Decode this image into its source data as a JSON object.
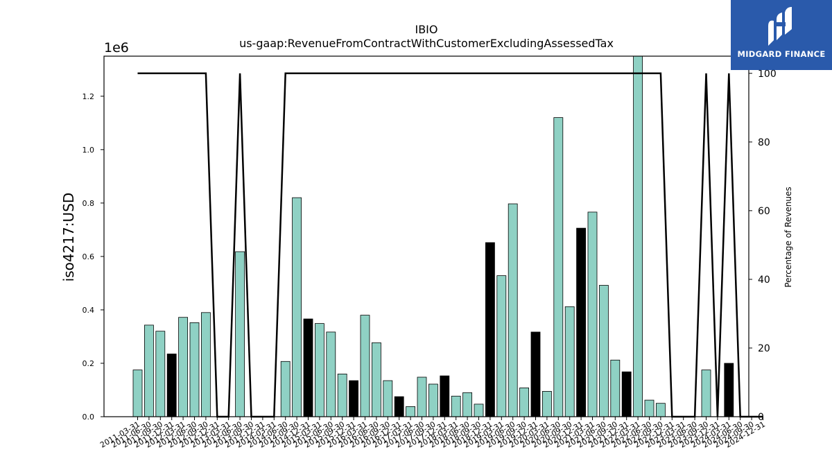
{
  "brand": {
    "name": "MIDGARD FINANCE",
    "background": "#2a5aab"
  },
  "chart_data": {
    "type": "bar",
    "title": "IBIO",
    "subtitle": "us-gaap:RevenueFromContractWithCustomerExcludingAssessedTax",
    "ylabel": "iso4217:USD",
    "y_offset_label": "1e6",
    "y2label": "Percentage of Revenues",
    "ylim": [
      0,
      1350000
    ],
    "y2lim": [
      0,
      105
    ],
    "yticks": [
      "0.0",
      "0.2",
      "0.4",
      "0.6",
      "0.8",
      "1.0",
      "1.2"
    ],
    "y2ticks": [
      "0",
      "20",
      "40",
      "60",
      "80",
      "100"
    ],
    "colors": {
      "bar": "#8fd1c4",
      "bar_highlight": "#000000",
      "line": "#000000"
    },
    "categories": [
      "2011-03-31",
      "2011-06-30",
      "2011-09-30",
      "2011-12-31",
      "2012-03-31",
      "2012-06-30",
      "2012-09-30",
      "2012-12-31",
      "2013-03-31",
      "2013-06-30",
      "2013-09-30",
      "2013-12-31",
      "2014-03-31",
      "2014-06-30",
      "2014-09-30",
      "2014-12-31",
      "2015-03-31",
      "2015-06-30",
      "2015-09-30",
      "2015-12-31",
      "2016-03-31",
      "2016-06-30",
      "2016-09-30",
      "2016-12-31",
      "2017-03-31",
      "2017-06-30",
      "2017-09-30",
      "2017-12-31",
      "2018-03-31",
      "2018-06-30",
      "2018-09-30",
      "2018-12-31",
      "2019-03-31",
      "2019-06-30",
      "2019-09-30",
      "2019-12-31",
      "2020-03-31",
      "2020-06-30",
      "2020-09-30",
      "2020-12-31",
      "2021-03-31",
      "2021-06-30",
      "2021-09-30",
      "2021-12-31",
      "2022-03-31",
      "2022-06-30",
      "2022-09-30",
      "2022-12-31",
      "2023-03-31",
      "2023-06-30",
      "2023-09-30",
      "2023-12-31",
      "2024-03-31",
      "2024-06-30",
      "2024-09-30",
      "2024-12-31"
    ],
    "tick_labels": [
      "2011-03-31",
      "2011-06-30",
      "2011-09-30",
      "2011-12-31",
      "2012-03-31",
      "2012-06-30",
      "2012-09-30",
      "2012-12-31",
      "2013-03-31",
      "2013-06-30",
      "2013-09-30",
      "2013-12-31",
      "2014-03-31",
      "2014-06-30",
      "2014-09-30",
      "2014-12-31",
      "2015-03-31",
      "2015-06-30",
      "2015-09-30",
      "2015-12-31",
      "2016-03-31",
      "2016-06-30",
      "2016-09-30",
      "2016-12-31",
      "2017-03-31",
      "2017-06-30",
      "2017-09-30",
      "2017-12-31",
      "2018-03-31",
      "2018-06-30",
      "2018-09-30",
      "2018-12-31",
      "2019-03-31",
      "2019-06-30",
      "2019-09-30",
      "2019-12-31",
      "2020-03-31",
      "2020-06-30",
      "2020-09-30",
      "2020-12-31",
      "2021-03-31",
      "2021-06-30",
      "2021-09-30",
      "2021-12-31",
      "2022-03-31",
      "2022-06-30",
      "2022-09-30",
      "2022-12-31",
      "2023-03-31",
      "2023-06-30",
      "2023-09-30",
      "2023-12-31",
      "2024-03-31",
      "2024-06-30",
      "2024-09-30",
      "2024-12-31"
    ],
    "values": [
      175000,
      343000,
      320000,
      235000,
      372000,
      352000,
      390000,
      0,
      0,
      618000,
      0,
      0,
      0,
      207000,
      820000,
      366000,
      349000,
      317000,
      160000,
      135000,
      380000,
      277000,
      135000,
      75000,
      38000,
      148000,
      122000,
      153000,
      77000,
      90000,
      47000,
      652000,
      528000,
      797000,
      108000,
      317000,
      95000,
      1120000,
      412000,
      706000,
      766000,
      492000,
      212000,
      168000,
      1350000,
      62000,
      50000,
      0,
      0,
      0,
      175000,
      0,
      200000,
      0,
      0,
      0
    ],
    "highlight": [
      false,
      false,
      false,
      true,
      false,
      false,
      false,
      false,
      false,
      false,
      false,
      false,
      false,
      false,
      false,
      true,
      false,
      false,
      false,
      true,
      false,
      false,
      false,
      true,
      false,
      false,
      false,
      true,
      false,
      false,
      false,
      true,
      false,
      false,
      false,
      true,
      false,
      false,
      false,
      true,
      false,
      false,
      false,
      true,
      false,
      false,
      false,
      false,
      false,
      false,
      false,
      false,
      true,
      false,
      false,
      false
    ],
    "line_series": {
      "name": "Percentage of Revenues",
      "values": [
        100,
        100,
        100,
        100,
        100,
        100,
        100,
        0,
        0,
        100,
        0,
        0,
        0,
        100,
        100,
        100,
        100,
        100,
        100,
        100,
        100,
        100,
        100,
        100,
        100,
        100,
        100,
        100,
        100,
        100,
        100,
        100,
        100,
        100,
        100,
        100,
        100,
        100,
        100,
        100,
        100,
        100,
        100,
        100,
        100,
        100,
        100,
        0,
        0,
        0,
        100,
        0,
        100,
        0,
        0,
        0
      ]
    },
    "grid": false
  }
}
